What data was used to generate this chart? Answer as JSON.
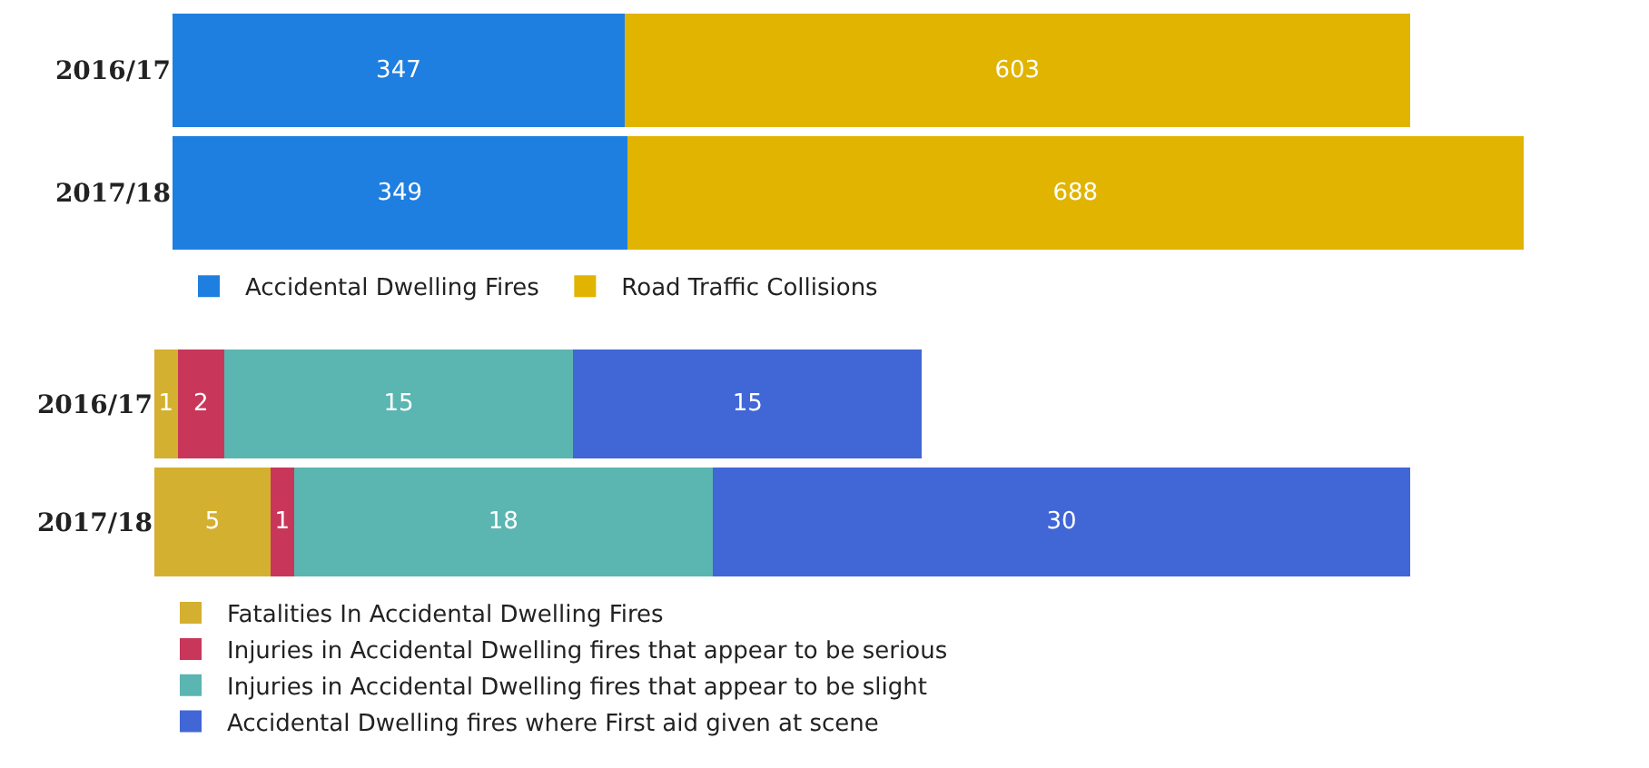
{
  "chart_data": [
    {
      "type": "bar",
      "orientation": "horizontal",
      "stacked": true,
      "data_labels": true,
      "legend": "bottom left",
      "tick_labels": "y",
      "categories": [
        "2016/17",
        "2017/18"
      ],
      "series": [
        {
          "name": "Accidental Dwelling Fires",
          "color": "#1f7fe0",
          "values": [
            347,
            349
          ]
        },
        {
          "name": "Road Traffic Collisions",
          "color": "#e0b400",
          "values": [
            603,
            688
          ]
        }
      ]
    },
    {
      "type": "bar",
      "orientation": "horizontal",
      "stacked": true,
      "data_labels": true,
      "legend": "bottom left",
      "tick_labels": "y",
      "categories": [
        "2016/17",
        "2017/18"
      ],
      "series": [
        {
          "name": "Fatalities In Accidental Dwelling Fires",
          "color": "#d4b030",
          "values": [
            1,
            5
          ]
        },
        {
          "name": "Injuries in Accidental Dwelling fires that appear to be serious",
          "color": "#c8375a",
          "values": [
            2,
            1
          ]
        },
        {
          "name": "Injuries in Accidental Dwelling fires that appear to be slight",
          "color": "#5bb5b0",
          "values": [
            15,
            18
          ]
        },
        {
          "name": "Accidental Dwelling fires where First aid given at scene",
          "color": "#4166d6",
          "values": [
            15,
            30
          ]
        }
      ]
    }
  ]
}
